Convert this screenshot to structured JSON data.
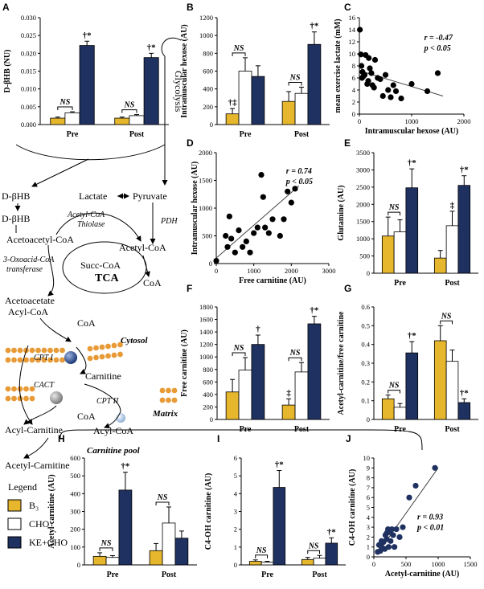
{
  "colors": {
    "b3": "#E6B62C",
    "cho": "#FFFFFF",
    "ke": "#1F3160",
    "line": "#000000",
    "membrane": "#E89A36",
    "cpt1": "#2D4C8C",
    "cact": "#9A9A9A"
  },
  "legend": {
    "title": "Legend",
    "items": [
      {
        "label": "B₃",
        "color": "#E6B62C"
      },
      {
        "label": "CHO",
        "color": "#FFFFFF"
      },
      {
        "label": "KE+CHO",
        "color": "#1F3160"
      }
    ]
  },
  "diagram": {
    "dbhb_top": "D-βHB",
    "dbhb_2": "D-βHB",
    "lactate": "Lactate",
    "pyruvate": "Pyruvate",
    "glycolysis": "Glycolysis",
    "pdh": "PDH",
    "acetyl_coa_thiolase_1": "Acetyl-CoA",
    "acetyl_coa_thiolase_2": "Thiolase",
    "acetoacetyl_coa": "Acetoacetyl-CoA",
    "acetyl_coa": "Acetyl-CoA",
    "oxoacid_1": "3-Oxoacid-CoA",
    "oxoacid_2": "transferase",
    "succ_coa": "Succ-CoA",
    "tca": "TCA",
    "coa_1": "CoA",
    "acetoacetate": "Acetoacetate",
    "acyl_coa_1": "Acyl-CoA",
    "coa_2": "CoA",
    "cytosol": "Cytosol",
    "cpt1": "CPT I",
    "carnitine": "Carnitine",
    "cact": "CACT",
    "cpt2": "CPT II",
    "matrix": "Matrix",
    "coa_3": "CoA",
    "acyl_coa_2": "Acyl-CoA",
    "acyl_carnitine": "Acyl-Carnitine",
    "carnitine_pool": "Carnitine pool",
    "acetyl_carnitine": "Acetyl-Carnitine"
  },
  "chart_data": [
    {
      "panel": "A",
      "type": "bar",
      "ylabel": "D-βHB (NU)",
      "categories": [
        "Pre",
        "Post"
      ],
      "ylim": [
        0,
        0.03
      ],
      "yticks": [
        0,
        0.005,
        0.01,
        0.015,
        0.02,
        0.025,
        0.03
      ],
      "ytick_labels": [
        "0.000",
        "0.005",
        "0.010",
        "0.015",
        "0.020",
        "0.025",
        "0.030"
      ],
      "series": [
        {
          "name": "B₃",
          "values": [
            0.0018,
            0.0018
          ],
          "errors": [
            0.0003,
            0.0003
          ]
        },
        {
          "name": "CHO",
          "values": [
            0.0033,
            0.0025
          ],
          "errors": [
            0.0003,
            0.0003
          ]
        },
        {
          "name": "KE+CHO",
          "values": [
            0.0222,
            0.0188
          ],
          "errors": [
            0.0012,
            0.0012
          ]
        }
      ],
      "annotations": [
        {
          "label": "NS",
          "category": 0,
          "type": "ns"
        },
        {
          "label": "NS",
          "category": 1,
          "type": "ns"
        },
        {
          "label": "†*",
          "category": 0,
          "series": 2,
          "type": "sig"
        },
        {
          "label": "†*",
          "category": 1,
          "series": 2,
          "type": "sig"
        }
      ]
    },
    {
      "panel": "B",
      "type": "bar",
      "ylabel": "Intramuscular hexose (AU)",
      "categories": [
        "Pre",
        "Post"
      ],
      "ylim": [
        0,
        1200
      ],
      "yticks": [
        0,
        200,
        400,
        600,
        800,
        1000,
        1200
      ],
      "ytick_labels": [
        "0",
        "200",
        "400",
        "600",
        "800",
        "1000",
        "1200"
      ],
      "series": [
        {
          "name": "B₃",
          "values": [
            120,
            260
          ],
          "errors": [
            60,
            110
          ]
        },
        {
          "name": "CHO",
          "values": [
            600,
            350
          ],
          "errors": [
            150,
            70
          ]
        },
        {
          "name": "KE+CHO",
          "values": [
            540,
            900
          ],
          "errors": [
            120,
            140
          ]
        }
      ],
      "annotations": [
        {
          "label": "NS",
          "category": 0,
          "type": "ns"
        },
        {
          "label": "NS",
          "category": 1,
          "type": "ns"
        },
        {
          "label": "†‡",
          "category": 0,
          "series": 0,
          "type": "sig"
        },
        {
          "label": "†*",
          "category": 1,
          "series": 2,
          "type": "sig"
        }
      ]
    },
    {
      "panel": "C",
      "type": "scatter",
      "xlabel": "Intramuscular hexose (AU)",
      "ylabel": "mean exercise lactate (mM)",
      "xlim": [
        0,
        2000
      ],
      "ylim": [
        0,
        16
      ],
      "xticks": [
        0,
        1000,
        2000
      ],
      "yticks": [
        0,
        2,
        4,
        6,
        8,
        10,
        12,
        14,
        16
      ],
      "stat_r": "r = -0.47",
      "stat_p": "p < 0.05",
      "fit": [
        [
          0,
          7.2
        ],
        [
          1600,
          3.0
        ]
      ],
      "x": [
        10,
        30,
        40,
        60,
        80,
        100,
        120,
        150,
        170,
        200,
        230,
        250,
        280,
        300,
        350,
        400,
        450,
        500,
        550,
        600,
        650,
        700,
        800,
        1000,
        1300,
        1500,
        50,
        180
      ],
      "y": [
        14.0,
        9.9,
        8.0,
        7.0,
        6.3,
        6.5,
        9.8,
        5.0,
        5.5,
        7.6,
        6.8,
        4.8,
        4.4,
        9.0,
        6.0,
        5.8,
        3.0,
        6.5,
        4.0,
        2.8,
        4.8,
        3.8,
        2.6,
        5.0,
        3.8,
        6.8,
        6.0,
        9.3
      ]
    },
    {
      "panel": "D",
      "type": "scatter",
      "xlabel": "Free carnitine (AU)",
      "ylabel": "Intramuscular hexose (AU)",
      "xlim": [
        0,
        3000
      ],
      "ylim": [
        0,
        2000
      ],
      "xticks": [
        0,
        1000,
        2000,
        3000
      ],
      "yticks": [
        0,
        500,
        1000,
        1500,
        2000
      ],
      "stat_r": "r = 0.74",
      "stat_p": "p < 0.05",
      "fit": [
        [
          0,
          100
        ],
        [
          2200,
          1400
        ]
      ],
      "x": [
        0,
        250,
        300,
        350,
        400,
        500,
        600,
        700,
        800,
        900,
        1000,
        1100,
        1200,
        1300,
        1400,
        1500,
        1700,
        1800,
        1900,
        2000,
        2100,
        1250
      ],
      "y": [
        50,
        500,
        300,
        850,
        450,
        200,
        600,
        300,
        400,
        200,
        550,
        650,
        1600,
        650,
        550,
        800,
        500,
        800,
        1300,
        1100,
        1350,
        1200
      ]
    },
    {
      "panel": "E",
      "type": "bar",
      "ylabel": "Glutamine (AU)",
      "categories": [
        "Pre",
        "Post"
      ],
      "ylim": [
        0,
        3500
      ],
      "yticks": [
        0,
        500,
        1000,
        1500,
        2000,
        2500,
        3000,
        3500
      ],
      "ytick_labels": [
        "0",
        "500",
        "1000",
        "1500",
        "2000",
        "2500",
        "3000",
        "3500"
      ],
      "series": [
        {
          "name": "B₃",
          "values": [
            1080,
            440
          ],
          "errors": [
            550,
            220
          ]
        },
        {
          "name": "CHO",
          "values": [
            1200,
            1380
          ],
          "errors": [
            350,
            420
          ]
        },
        {
          "name": "KE+CHO",
          "values": [
            2480,
            2550
          ],
          "errors": [
            550,
            280
          ]
        }
      ],
      "annotations": [
        {
          "label": "NS",
          "category": 0,
          "type": "ns"
        },
        {
          "label": "‡",
          "category": 1,
          "series": 1,
          "type": "sig"
        },
        {
          "label": "†*",
          "category": 0,
          "series": 2,
          "type": "sig"
        },
        {
          "label": "†*",
          "category": 1,
          "series": 2,
          "type": "sig"
        }
      ]
    },
    {
      "panel": "F",
      "type": "bar",
      "ylabel": "Free carnitine (AU)",
      "categories": [
        "Pre",
        "Post"
      ],
      "ylim": [
        0,
        1800
      ],
      "yticks": [
        0,
        200,
        400,
        600,
        800,
        1000,
        1200,
        1400,
        1600,
        1800
      ],
      "ytick_labels": [
        "0",
        "200",
        "400",
        "600",
        "800",
        "1000",
        "1200",
        "1400",
        "1600",
        "1800"
      ],
      "series": [
        {
          "name": "B₃",
          "values": [
            440,
            230
          ],
          "errors": [
            200,
            100
          ]
        },
        {
          "name": "CHO",
          "values": [
            790,
            760
          ],
          "errors": [
            200,
            150
          ]
        },
        {
          "name": "KE+CHO",
          "values": [
            1200,
            1530
          ],
          "errors": [
            150,
            120
          ]
        }
      ],
      "annotations": [
        {
          "label": "NS",
          "category": 0,
          "type": "ns"
        },
        {
          "label": "NS",
          "category": 1,
          "type": "ns"
        },
        {
          "label": "‡",
          "category": 1,
          "series": 0,
          "type": "sig"
        },
        {
          "label": "†",
          "category": 0,
          "series": 2,
          "type": "sig"
        },
        {
          "label": "†*",
          "category": 1,
          "series": 2,
          "type": "sig"
        }
      ]
    },
    {
      "panel": "G",
      "type": "bar",
      "ylabel": "Acetyl-carnitine/free carnitine",
      "categories": [
        "Pre",
        "Post"
      ],
      "ylim": [
        0,
        0.6
      ],
      "yticks": [
        0,
        0.1,
        0.2,
        0.3,
        0.4,
        0.5,
        0.6
      ],
      "ytick_labels": [
        "0",
        "0.1",
        "0.2",
        "0.3",
        "0.4",
        "0.5",
        "0.6"
      ],
      "series": [
        {
          "name": "B₃",
          "values": [
            0.11,
            0.42
          ],
          "errors": [
            0.02,
            0.08
          ]
        },
        {
          "name": "CHO",
          "values": [
            0.065,
            0.31
          ],
          "errors": [
            0.02,
            0.06
          ]
        },
        {
          "name": "KE+CHO",
          "values": [
            0.355,
            0.09
          ],
          "errors": [
            0.06,
            0.02
          ]
        }
      ],
      "annotations": [
        {
          "label": "NS",
          "category": 0,
          "type": "ns"
        },
        {
          "label": "NS",
          "category": 1,
          "type": "ns"
        },
        {
          "label": "†*",
          "category": 0,
          "series": 2,
          "type": "sig"
        },
        {
          "label": "†*",
          "category": 1,
          "series": 2,
          "type": "sig"
        }
      ]
    },
    {
      "panel": "H",
      "type": "bar",
      "ylabel": "Acetyl-carnitine (AU)",
      "categories": [
        "Pre",
        "Post"
      ],
      "ylim": [
        0,
        600
      ],
      "yticks": [
        0,
        100,
        200,
        300,
        400,
        500,
        600
      ],
      "ytick_labels": [
        "0",
        "100",
        "200",
        "300",
        "400",
        "500",
        "600"
      ],
      "series": [
        {
          "name": "B₃",
          "values": [
            48,
            80
          ],
          "errors": [
            20,
            40
          ]
        },
        {
          "name": "CHO",
          "values": [
            42,
            235
          ],
          "errors": [
            10,
            90
          ]
        },
        {
          "name": "KE+CHO",
          "values": [
            420,
            150
          ],
          "errors": [
            100,
            40
          ]
        }
      ],
      "annotations": [
        {
          "label": "NS",
          "category": 0,
          "type": "ns"
        },
        {
          "label": "NS",
          "category": 1,
          "type": "ns"
        },
        {
          "label": "†*",
          "category": 0,
          "series": 2,
          "type": "sig"
        }
      ]
    },
    {
      "panel": "I",
      "type": "bar",
      "ylabel": "C4-OH carnitine (AU)",
      "categories": [
        "Pre",
        "Post"
      ],
      "ylim": [
        0,
        6
      ],
      "yticks": [
        0,
        1,
        2,
        3,
        4,
        5,
        6
      ],
      "ytick_labels": [
        "0",
        "1",
        "2",
        "3",
        "4",
        "5",
        "6"
      ],
      "series": [
        {
          "name": "B₃",
          "values": [
            0.2,
            0.3
          ],
          "errors": [
            0.08,
            0.12
          ]
        },
        {
          "name": "CHO",
          "values": [
            0.15,
            0.38
          ],
          "errors": [
            0.05,
            0.15
          ]
        },
        {
          "name": "KE+CHO",
          "values": [
            4.35,
            1.22
          ],
          "errors": [
            0.95,
            0.3
          ]
        }
      ],
      "annotations": [
        {
          "label": "NS",
          "category": 0,
          "type": "ns"
        },
        {
          "label": "NS",
          "category": 1,
          "type": "ns"
        },
        {
          "label": "†*",
          "category": 0,
          "series": 2,
          "type": "sig"
        },
        {
          "label": "†*",
          "category": 1,
          "series": 2,
          "type": "sig"
        }
      ]
    },
    {
      "panel": "J",
      "type": "scatter",
      "xlabel": "Acetyl-carnitine (AU)",
      "ylabel": "C4-OH carnitine (AU)",
      "xlim": [
        0,
        1500
      ],
      "ylim": [
        0,
        10
      ],
      "xticks": [
        0,
        500,
        1000,
        1500
      ],
      "yticks": [
        0,
        1,
        2,
        3,
        4,
        5,
        6,
        7,
        8,
        9,
        10
      ],
      "stat_r": "r = 0.93",
      "stat_p": "p < 0.01",
      "fit": [
        [
          50,
          0.3
        ],
        [
          1000,
          9.0
        ]
      ],
      "x": [
        60,
        80,
        100,
        120,
        150,
        170,
        180,
        200,
        220,
        230,
        250,
        260,
        280,
        300,
        320,
        350,
        400,
        450,
        550,
        650,
        950,
        120,
        200
      ],
      "y": [
        0.5,
        1.2,
        0.6,
        1.0,
        1.5,
        0.8,
        2.2,
        1.8,
        2.8,
        1.0,
        2.5,
        1.6,
        2.8,
        2.2,
        1.0,
        2.8,
        2.0,
        3.0,
        6.0,
        7.2,
        9.0,
        1.6,
        2.4
      ]
    }
  ]
}
